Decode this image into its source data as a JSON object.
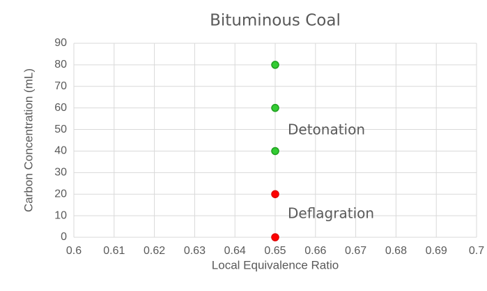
{
  "chart_data": {
    "type": "scatter",
    "title": "Bituminous Coal",
    "x_label": "Local Equivalence Ratio",
    "y_label": "Carbon Concentration (mL)",
    "annotations": [
      "Detonation",
      "Deflagration"
    ],
    "series": [
      {
        "color": "#33cc33",
        "edge": "#1e9e1e",
        "x": [
          0.65,
          0.65,
          0.65
        ],
        "values": [
          40,
          60,
          80
        ]
      },
      {
        "color": "#ff0000",
        "edge": "#e00000",
        "x": [
          0.65,
          0.65
        ],
        "values": [
          0,
          20
        ]
      }
    ],
    "xlim": [
      0.6,
      0.7
    ],
    "xticks": [
      0.6,
      0.61,
      0.62,
      0.63,
      0.64,
      0.65,
      0.66,
      0.67,
      0.68,
      0.69,
      0.7
    ],
    "ylim": [
      0,
      90
    ],
    "yticks": [
      0,
      10,
      20,
      30,
      40,
      50,
      60,
      70,
      80,
      90
    ],
    "grid": true
  }
}
